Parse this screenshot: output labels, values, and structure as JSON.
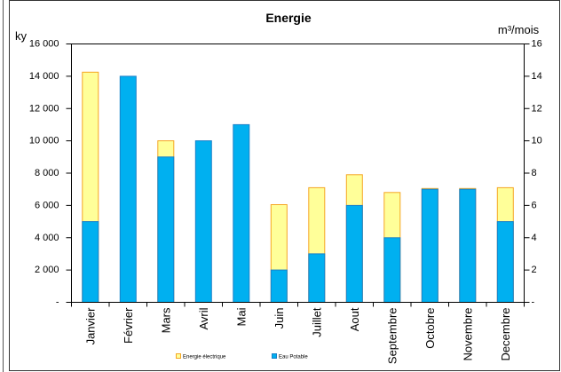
{
  "chart_data": {
    "type": "bar",
    "title": "Energie",
    "ylabel_left": "ky",
    "ylabel_right": "m³/mois",
    "categories": [
      "Janvier",
      "Février",
      "Mars",
      "Avril",
      "Mai",
      "Juin",
      "Juillet",
      "Aout",
      "Septembre",
      "Octobre",
      "Novembre",
      "Decembre"
    ],
    "series": [
      {
        "name": "Energie électrique",
        "axis": "left",
        "color": "#FFFF99",
        "border": "#F5A623",
        "values": [
          14250,
          null,
          10000,
          null,
          null,
          6050,
          7100,
          7900,
          6800,
          7050,
          7050,
          7100
        ]
      },
      {
        "name": "Eau Potable",
        "axis": "right",
        "color": "#00B0F0",
        "border": "#1A80C8",
        "values": [
          5,
          14,
          9,
          10,
          11,
          2,
          3,
          6,
          4,
          7,
          7,
          5
        ]
      }
    ],
    "ylim_left": [
      0,
      16000
    ],
    "ylim_right": [
      0,
      16
    ],
    "ytick_labels_left": [
      "-",
      "2 000",
      "4 000",
      "6 000",
      "8 000",
      "10 000",
      "12 000",
      "14 000",
      "16 000"
    ],
    "ytick_labels_right": [
      "-",
      "2",
      "4",
      "6",
      "8",
      "10",
      "12",
      "14",
      "16"
    ],
    "grid": false,
    "legend": "bottom"
  }
}
